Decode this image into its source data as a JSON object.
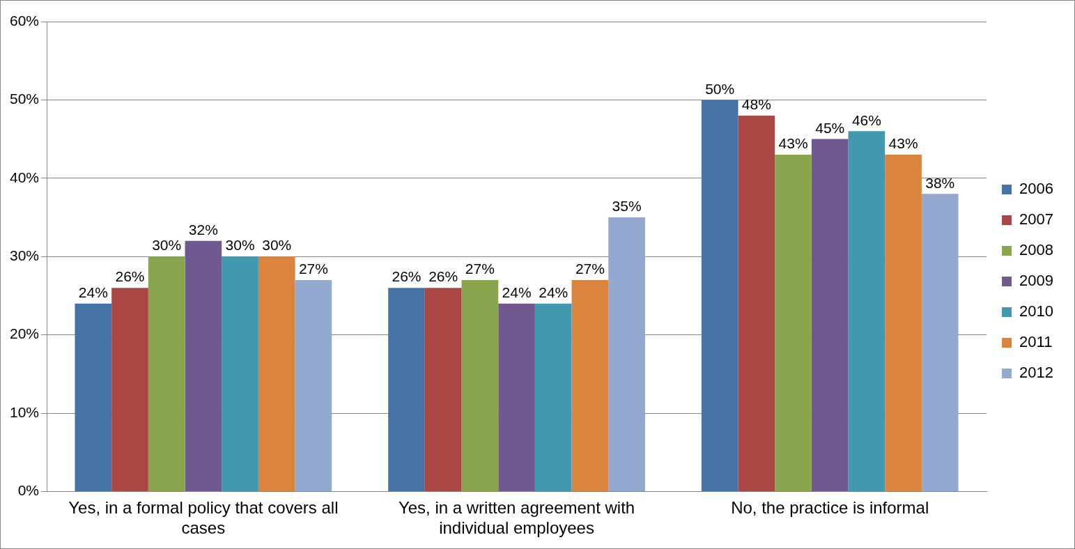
{
  "chart_data": {
    "type": "bar",
    "categories": [
      "Yes, in a formal policy that covers all cases",
      "Yes, in a written agreement with individual employees",
      "No, the practice is informal"
    ],
    "series": [
      {
        "name": "2006",
        "color": "#4572a7",
        "values": [
          24,
          26,
          50
        ],
        "value_labels": [
          "24%",
          "26%",
          "50%"
        ]
      },
      {
        "name": "2007",
        "color": "#aa4643",
        "values": [
          26,
          26,
          48
        ],
        "value_labels": [
          "26%",
          "26%",
          "48%"
        ]
      },
      {
        "name": "2008",
        "color": "#89a54e",
        "values": [
          30,
          27,
          43
        ],
        "value_labels": [
          "30%",
          "27%",
          "43%"
        ]
      },
      {
        "name": "2009",
        "color": "#71588f",
        "values": [
          32,
          24,
          45
        ],
        "value_labels": [
          "32%",
          "24%",
          "45%"
        ]
      },
      {
        "name": "2010",
        "color": "#4198af",
        "values": [
          30,
          24,
          46
        ],
        "value_labels": [
          "30%",
          "24%",
          "46%"
        ]
      },
      {
        "name": "2011",
        "color": "#db843d",
        "values": [
          30,
          27,
          43
        ],
        "value_labels": [
          "30%",
          "27%",
          "43%"
        ]
      },
      {
        "name": "2012",
        "color": "#93a9cf",
        "values": [
          27,
          35,
          38
        ],
        "value_labels": [
          "27%",
          "35%",
          "38%"
        ]
      }
    ],
    "ylim": [
      0,
      60
    ],
    "yticks": [
      {
        "value": 0,
        "label": "0%"
      },
      {
        "value": 10,
        "label": "10%"
      },
      {
        "value": 20,
        "label": "20%"
      },
      {
        "value": 30,
        "label": "30%"
      },
      {
        "value": 40,
        "label": "40%"
      },
      {
        "value": 50,
        "label": "50%"
      },
      {
        "value": 60,
        "label": "60%"
      }
    ],
    "grid": "y",
    "legend": "right"
  }
}
